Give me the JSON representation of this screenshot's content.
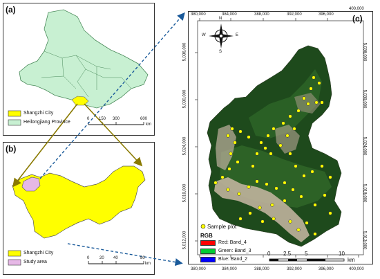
{
  "panel_a": {
    "label": "(a)",
    "legend": [
      "Shangzhi City",
      "Heilongjiang Province"
    ],
    "scale_ticks": [
      "0",
      "150",
      "300",
      "600"
    ],
    "scale_unit": "km"
  },
  "panel_b": {
    "label": "(b)",
    "legend": [
      "Shangzhi City",
      "Study area"
    ],
    "scale_ticks": [
      "0",
      "20",
      "40",
      "80"
    ],
    "scale_unit": "km"
  },
  "panel_c": {
    "label": "(c)",
    "x_ticks": [
      "380,000",
      "384,000",
      "388,000",
      "392,000",
      "396,000",
      "400,000"
    ],
    "y_ticks": [
      "5,036,000",
      "5,030,000",
      "5,024,000",
      "5,018,000",
      "5,012,000"
    ],
    "compass": {
      "n": "N",
      "s": "S",
      "e": "E",
      "w": "W"
    },
    "legend": {
      "sample_plot": "Sample plot",
      "rgb_title": "RGB",
      "bands": [
        {
          "label": "Red:  Band_4",
          "color": "#ff0000"
        },
        {
          "label": "Green: Band_3",
          "color": "#00cc33"
        },
        {
          "label": "Blue:  Band_2",
          "color": "#0000ff"
        }
      ]
    },
    "scale_ticks": [
      "0",
      "2.5",
      "5",
      "10"
    ],
    "scale_unit": "km"
  },
  "colors": {
    "province": "#c8f0d2",
    "city": "#ffff00",
    "study_area": "#e6b8e6",
    "sample_plot": "#ffff00",
    "arrow_olive": "#8a7a00",
    "arrow_blue": "#1a5a9a"
  }
}
